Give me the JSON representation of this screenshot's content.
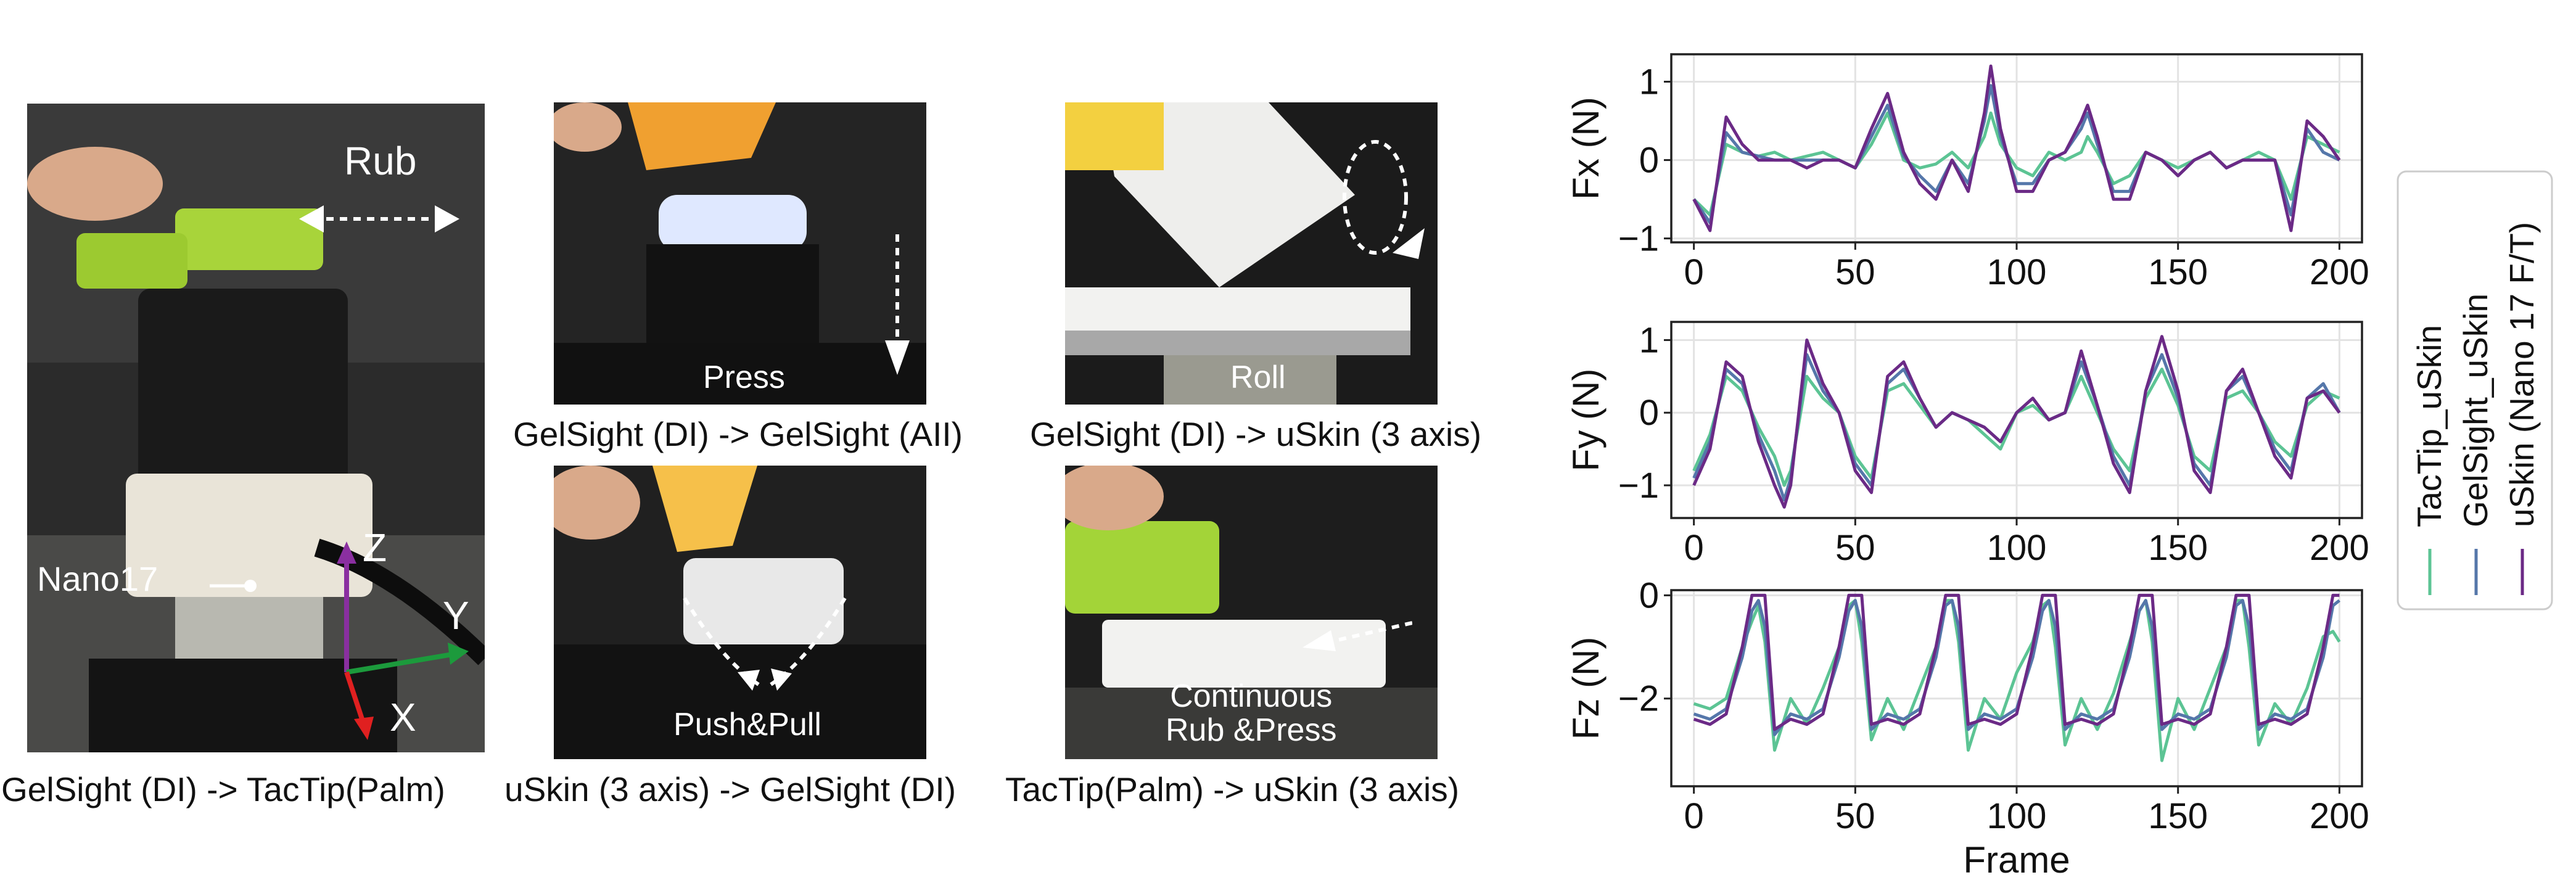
{
  "panels": {
    "main_photo": {
      "overlay_rub": "Rub",
      "label_nano": "Nano17",
      "axis_z": "Z",
      "axis_y": "Y",
      "axis_x": "X",
      "caption": "GelSight (DI) ->  TacTip(Palm)"
    },
    "press": {
      "overlay": "Press",
      "caption": "GelSight (DI) ->  GelSight (AII)"
    },
    "roll": {
      "overlay": "Roll",
      "caption": "GelSight (DI) ->  uSkin (3 axis)"
    },
    "pushpull": {
      "overlay": "Push&Pull",
      "caption": "uSkin (3 axis) -> GelSight (DI)"
    },
    "continuous": {
      "overlay_line1": "Continuous",
      "overlay_line2": "Rub &Press",
      "caption": "TacTip(Palm) -> uSkin (3 axis)"
    }
  },
  "colors": {
    "tactip": "#5cc494",
    "gelsight": "#5577aa",
    "uskin": "#6b2a86"
  },
  "chart_data": [
    {
      "type": "line",
      "ylabel": "Fx (N)",
      "xlabel": "",
      "xlim": [
        -7,
        207
      ],
      "ylim": [
        -1.05,
        1.35
      ],
      "xticks": [
        0,
        50,
        100,
        150,
        200
      ],
      "yticks": [
        -1,
        0,
        1
      ],
      "grid": true,
      "x": [
        0,
        5,
        10,
        15,
        20,
        25,
        30,
        35,
        40,
        45,
        50,
        55,
        60,
        65,
        70,
        75,
        80,
        85,
        90,
        92,
        95,
        100,
        105,
        110,
        115,
        120,
        122,
        125,
        130,
        135,
        140,
        145,
        150,
        155,
        160,
        165,
        170,
        175,
        180,
        185,
        190,
        195,
        200
      ],
      "series": [
        {
          "name": "TacTip_uSkin",
          "values": [
            -0.5,
            -0.7,
            0.2,
            0.1,
            0.05,
            0.1,
            0.0,
            0.05,
            0.1,
            0.0,
            -0.1,
            0.2,
            0.6,
            0.0,
            -0.1,
            -0.05,
            0.1,
            -0.1,
            0.3,
            0.6,
            0.2,
            -0.1,
            -0.2,
            0.1,
            0.0,
            0.1,
            0.3,
            0.1,
            -0.3,
            -0.2,
            0.1,
            0.0,
            -0.1,
            0.0,
            0.1,
            -0.1,
            0.0,
            0.1,
            0.0,
            -0.5,
            0.3,
            0.2,
            0.1
          ]
        },
        {
          "name": "GelSight_uSkin",
          "values": [
            -0.5,
            -0.8,
            0.35,
            0.1,
            0.05,
            0.0,
            0.0,
            0.0,
            0.0,
            0.0,
            -0.1,
            0.3,
            0.7,
            0.05,
            -0.2,
            -0.4,
            0.0,
            -0.3,
            0.5,
            0.95,
            0.3,
            -0.3,
            -0.3,
            0.0,
            0.1,
            0.4,
            0.6,
            0.2,
            -0.4,
            -0.4,
            0.1,
            0.0,
            -0.2,
            0.0,
            0.1,
            -0.1,
            0.0,
            0.0,
            0.0,
            -0.7,
            0.4,
            0.1,
            0.0
          ]
        },
        {
          "name": "uSkin (Nano 17 F/T)",
          "values": [
            -0.5,
            -0.9,
            0.55,
            0.2,
            0.0,
            0.0,
            0.0,
            -0.1,
            0.0,
            0.0,
            -0.1,
            0.4,
            0.85,
            0.1,
            -0.3,
            -0.5,
            0.0,
            -0.4,
            0.6,
            1.2,
            0.4,
            -0.4,
            -0.4,
            0.0,
            0.1,
            0.5,
            0.7,
            0.3,
            -0.5,
            -0.5,
            0.1,
            0.0,
            -0.2,
            0.0,
            0.1,
            -0.1,
            0.0,
            0.0,
            0.0,
            -0.9,
            0.5,
            0.3,
            0.0
          ]
        }
      ]
    },
    {
      "type": "line",
      "ylabel": "Fy (N)",
      "xlabel": "",
      "xlim": [
        -7,
        207
      ],
      "ylim": [
        -1.45,
        1.25
      ],
      "xticks": [
        0,
        50,
        100,
        150,
        200
      ],
      "yticks": [
        -1,
        0,
        1
      ],
      "grid": true,
      "x": [
        0,
        5,
        10,
        15,
        20,
        25,
        28,
        30,
        35,
        40,
        45,
        50,
        55,
        60,
        65,
        70,
        75,
        80,
        85,
        90,
        95,
        100,
        105,
        110,
        115,
        120,
        125,
        130,
        135,
        140,
        145,
        150,
        155,
        160,
        165,
        170,
        175,
        180,
        185,
        190,
        195,
        200
      ],
      "series": [
        {
          "name": "TacTip_uSkin",
          "values": [
            -0.8,
            -0.3,
            0.5,
            0.3,
            -0.2,
            -0.6,
            -1.0,
            -0.8,
            0.5,
            0.2,
            0.0,
            -0.6,
            -0.9,
            0.3,
            0.4,
            0.1,
            -0.2,
            0.0,
            -0.1,
            -0.3,
            -0.5,
            0.0,
            0.1,
            -0.1,
            0.0,
            0.5,
            0.0,
            -0.5,
            -0.8,
            0.2,
            0.6,
            0.1,
            -0.6,
            -0.8,
            0.2,
            0.3,
            0.0,
            -0.4,
            -0.6,
            0.1,
            0.3,
            0.2
          ]
        },
        {
          "name": "GelSight_uSkin",
          "values": [
            -0.9,
            -0.4,
            0.6,
            0.4,
            -0.3,
            -0.8,
            -1.2,
            -0.9,
            0.8,
            0.3,
            0.0,
            -0.7,
            -1.0,
            0.4,
            0.6,
            0.2,
            -0.2,
            0.0,
            -0.1,
            -0.2,
            -0.4,
            0.0,
            0.2,
            -0.1,
            0.0,
            0.7,
            0.1,
            -0.6,
            -1.0,
            0.3,
            0.8,
            0.2,
            -0.7,
            -1.0,
            0.3,
            0.5,
            0.0,
            -0.5,
            -0.8,
            0.2,
            0.4,
            0.0
          ]
        },
        {
          "name": "uSkin (Nano 17 F/T)",
          "values": [
            -1.0,
            -0.5,
            0.7,
            0.5,
            -0.4,
            -1.0,
            -1.3,
            -1.0,
            1.0,
            0.4,
            0.0,
            -0.8,
            -1.1,
            0.5,
            0.7,
            0.2,
            -0.2,
            0.0,
            -0.1,
            -0.2,
            -0.4,
            0.0,
            0.2,
            -0.1,
            0.0,
            0.85,
            0.1,
            -0.7,
            -1.1,
            0.3,
            1.05,
            0.3,
            -0.8,
            -1.1,
            0.3,
            0.6,
            0.0,
            -0.6,
            -0.9,
            0.2,
            0.3,
            0.0
          ]
        }
      ]
    },
    {
      "type": "line",
      "ylabel": "Fz (N)",
      "xlabel": "Frame",
      "xlim": [
        -7,
        207
      ],
      "ylim": [
        -3.7,
        0.1
      ],
      "xticks": [
        0,
        50,
        100,
        150,
        200
      ],
      "yticks": [
        -2,
        0
      ],
      "grid": true,
      "x": [
        0,
        5,
        10,
        15,
        18,
        20,
        22,
        25,
        30,
        35,
        40,
        45,
        48,
        50,
        52,
        55,
        60,
        65,
        70,
        75,
        78,
        80,
        82,
        85,
        90,
        95,
        100,
        105,
        108,
        110,
        112,
        115,
        120,
        125,
        130,
        135,
        138,
        140,
        142,
        145,
        150,
        155,
        160,
        165,
        168,
        170,
        172,
        175,
        180,
        185,
        190,
        195,
        198,
        200
      ],
      "series": [
        {
          "name": "TacTip_uSkin",
          "values": [
            -2.1,
            -2.2,
            -2.0,
            -1.0,
            -0.5,
            -0.2,
            -0.9,
            -3.0,
            -2.0,
            -2.5,
            -1.8,
            -1.0,
            -0.2,
            -0.1,
            -0.9,
            -2.8,
            -2.0,
            -2.6,
            -1.8,
            -1.0,
            -0.1,
            -0.1,
            -0.9,
            -3.0,
            -2.0,
            -2.4,
            -1.5,
            -0.9,
            -0.2,
            -0.1,
            -1.0,
            -2.9,
            -2.0,
            -2.6,
            -1.9,
            -0.9,
            -0.3,
            -0.1,
            -0.9,
            -3.2,
            -2.0,
            -2.6,
            -1.8,
            -1.0,
            -0.1,
            -0.1,
            -1.0,
            -2.9,
            -2.1,
            -2.5,
            -1.8,
            -0.8,
            -0.7,
            -0.9
          ]
        },
        {
          "name": "GelSight_uSkin",
          "values": [
            -2.3,
            -2.4,
            -2.2,
            -1.2,
            -0.3,
            -0.1,
            -0.6,
            -2.7,
            -2.3,
            -2.4,
            -2.2,
            -1.2,
            -0.3,
            -0.1,
            -0.6,
            -2.6,
            -2.3,
            -2.4,
            -2.2,
            -1.2,
            -0.2,
            -0.1,
            -0.6,
            -2.6,
            -2.3,
            -2.4,
            -2.2,
            -1.2,
            -0.3,
            -0.1,
            -0.6,
            -2.6,
            -2.3,
            -2.4,
            -2.2,
            -1.2,
            -0.3,
            -0.1,
            -0.6,
            -2.6,
            -2.3,
            -2.4,
            -2.2,
            -1.2,
            -0.2,
            -0.1,
            -0.6,
            -2.6,
            -2.3,
            -2.4,
            -2.2,
            -1.2,
            -0.2,
            -0.1
          ]
        },
        {
          "name": "uSkin (Nano 17 F/T)",
          "values": [
            -2.4,
            -2.5,
            -2.3,
            -1.0,
            0.0,
            0.0,
            0.0,
            -2.6,
            -2.4,
            -2.5,
            -2.3,
            -1.0,
            0.0,
            0.0,
            0.0,
            -2.5,
            -2.4,
            -2.5,
            -2.3,
            -1.0,
            0.0,
            0.0,
            0.0,
            -2.5,
            -2.4,
            -2.5,
            -2.3,
            -1.0,
            0.0,
            0.0,
            0.0,
            -2.5,
            -2.4,
            -2.5,
            -2.3,
            -1.0,
            0.0,
            0.0,
            0.0,
            -2.5,
            -2.4,
            -2.5,
            -2.3,
            -1.0,
            0.0,
            0.0,
            0.0,
            -2.5,
            -2.4,
            -2.5,
            -2.3,
            -1.0,
            0.0,
            0.0
          ]
        }
      ]
    }
  ]
}
